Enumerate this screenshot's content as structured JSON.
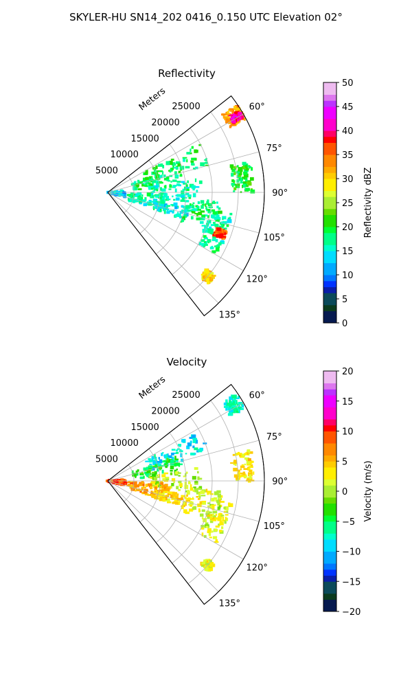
{
  "figure": {
    "title": "SKYLER-HU  SN14_202  0416_0.150 UTC Elevation 02°"
  },
  "chart_data": [
    {
      "type": "heatmap",
      "subtype": "polar-sector radar PPI",
      "title": "Reflectivity",
      "range_axis_label": "Meters",
      "range_ticks": [
        "5000",
        "10000",
        "15000",
        "20000",
        "25000"
      ],
      "azimuth_ticks": [
        "60°",
        "75°",
        "90°",
        "105°",
        "120°",
        "135°"
      ],
      "range_lim": [
        0,
        30000
      ],
      "azimuth_lim": [
        52,
        142
      ],
      "grid": true,
      "colorbar": {
        "label": "Reflectivity dBZ",
        "range": [
          0,
          50
        ],
        "ticks": [
          "0",
          "5",
          "10",
          "15",
          "20",
          "25",
          "30",
          "35",
          "40",
          "45",
          "50"
        ]
      },
      "echo_regions": [
        {
          "az": [
            56,
            62
          ],
          "r": [
            26500,
            29800
          ],
          "value": 33
        },
        {
          "az": [
            58,
            61
          ],
          "r": [
            27500,
            29500
          ],
          "value": 40
        },
        {
          "az": [
            62,
            75
          ],
          "r": [
            8000,
            20000
          ],
          "value": 19
        },
        {
          "az": [
            70,
            85
          ],
          "r": [
            5000,
            14500
          ],
          "value": 18
        },
        {
          "az": [
            82,
            98
          ],
          "r": [
            8000,
            18000
          ],
          "value": 16
        },
        {
          "az": [
            92,
            110
          ],
          "r": [
            4000,
            12000
          ],
          "value": 17
        },
        {
          "az": [
            100,
            110
          ],
          "r": [
            9000,
            16000
          ],
          "value": 15
        },
        {
          "az": [
            100,
            120
          ],
          "r": [
            20000,
            24000
          ],
          "value": 17
        },
        {
          "az": [
            108,
            112
          ],
          "r": [
            22000,
            24000
          ],
          "value": 36
        },
        {
          "az": [
            128,
            132
          ],
          "r": [
            24000,
            26000
          ],
          "value": 30
        },
        {
          "az": [
            78,
            90
          ],
          "r": [
            24000,
            28000
          ],
          "value": 20
        },
        {
          "az": [
            95,
            112
          ],
          "r": [
            15000,
            22000
          ],
          "value": 18
        },
        {
          "az": [
            85,
            105
          ],
          "r": [
            0,
            3500
          ],
          "value": 13
        }
      ]
    },
    {
      "type": "heatmap",
      "subtype": "polar-sector radar PPI",
      "title": "Velocity",
      "range_axis_label": "Meters",
      "range_ticks": [
        "5000",
        "10000",
        "15000",
        "20000",
        "25000"
      ],
      "azimuth_ticks": [
        "60°",
        "75°",
        "90°",
        "105°",
        "120°",
        "135°"
      ],
      "range_lim": [
        0,
        30000
      ],
      "azimuth_lim": [
        52,
        142
      ],
      "grid": true,
      "colorbar": {
        "label": "Velocity (m/s)",
        "range": [
          -20,
          20
        ],
        "ticks": [
          "−20",
          "−15",
          "−10",
          "−5",
          "0",
          "5",
          "10",
          "15",
          "20"
        ]
      },
      "echo_regions": [
        {
          "az": [
            56,
            62
          ],
          "r": [
            26500,
            29800
          ],
          "value": -7
        },
        {
          "az": [
            62,
            75
          ],
          "r": [
            8000,
            20000
          ],
          "value": -9
        },
        {
          "az": [
            70,
            85
          ],
          "r": [
            5000,
            14500
          ],
          "value": -4
        },
        {
          "az": [
            82,
            98
          ],
          "r": [
            8000,
            18000
          ],
          "value": 1
        },
        {
          "az": [
            92,
            110
          ],
          "r": [
            4000,
            12000
          ],
          "value": 6
        },
        {
          "az": [
            100,
            110
          ],
          "r": [
            9000,
            16000
          ],
          "value": 4
        },
        {
          "az": [
            100,
            120
          ],
          "r": [
            20000,
            24000
          ],
          "value": 1
        },
        {
          "az": [
            128,
            132
          ],
          "r": [
            24000,
            26000
          ],
          "value": 2
        },
        {
          "az": [
            78,
            90
          ],
          "r": [
            24000,
            28000
          ],
          "value": 3
        },
        {
          "az": [
            95,
            112
          ],
          "r": [
            15000,
            22000
          ],
          "value": 2
        },
        {
          "az": [
            85,
            105
          ],
          "r": [
            0,
            3500
          ],
          "value": 9
        }
      ]
    }
  ]
}
